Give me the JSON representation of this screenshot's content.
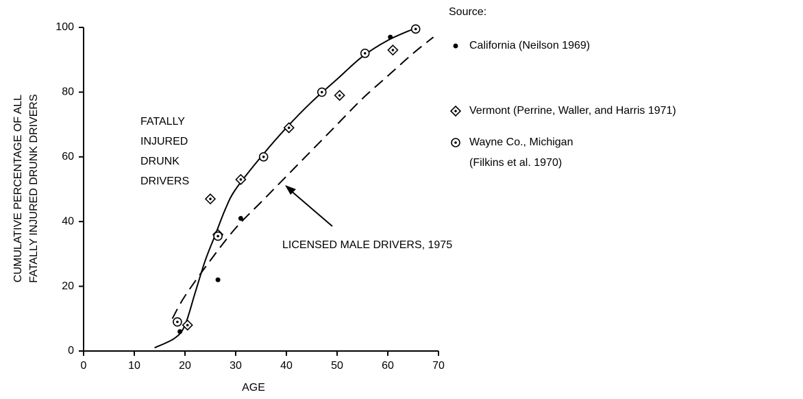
{
  "chart_data": {
    "type": "scatter",
    "xlabel": "AGE",
    "ylabel": [
      "CUMULATIVE PERCENTAGE OF ALL",
      "FATALLY INJURED DRUNK DRIVERS"
    ],
    "xlim": [
      0,
      70
    ],
    "xticks": [
      0,
      10,
      20,
      30,
      40,
      50,
      60,
      70
    ],
    "ylim": [
      0,
      100
    ],
    "yticks": [
      0,
      20,
      40,
      60,
      80,
      100
    ],
    "legend_title": "Source:",
    "color": "#000000",
    "series": [
      {
        "name": [
          "California (Neilson  1969)"
        ],
        "marker": "dot",
        "x": [
          19,
          26.5,
          31,
          60.5
        ],
        "values": [
          6,
          22,
          41,
          97
        ]
      },
      {
        "name": [
          "Vermont (Perrine, Waller, and Harris 1971)"
        ],
        "marker": "diamond",
        "x": [
          20.5,
          25,
          26.5,
          31,
          40.5,
          50.5,
          61
        ],
        "values": [
          8,
          47,
          36,
          53,
          69,
          79,
          93
        ]
      },
      {
        "name": [
          "Wayne Co., Michigan",
          "(Filkins et al. 1970)"
        ],
        "marker": "circle",
        "x": [
          18.5,
          26.5,
          35.5,
          47,
          55.5,
          65.5
        ],
        "values": [
          9,
          35.5,
          60,
          80,
          92,
          99.5
        ]
      }
    ],
    "lines": [
      {
        "label": [
          "FATALLY",
          "INJURED",
          "DRUNK",
          "DRIVERS"
        ],
        "style": "solid",
        "x": [
          14,
          18,
          20,
          22,
          24,
          26,
          28,
          30,
          35,
          40,
          45,
          50,
          55,
          60,
          65
        ],
        "values": [
          1,
          4,
          8,
          18,
          28,
          36,
          44,
          50,
          60,
          69,
          77,
          84,
          91,
          96,
          99.5
        ]
      },
      {
        "label": [
          "LICENSED MALE DRIVERS, 1975"
        ],
        "style": "dashed",
        "x": [
          17.5,
          20,
          25,
          30,
          35,
          40,
          45,
          50,
          55,
          60,
          65,
          69
        ],
        "values": [
          10,
          17,
          28,
          38,
          46,
          54,
          62,
          70,
          78,
          85,
          92,
          97
        ]
      }
    ]
  }
}
